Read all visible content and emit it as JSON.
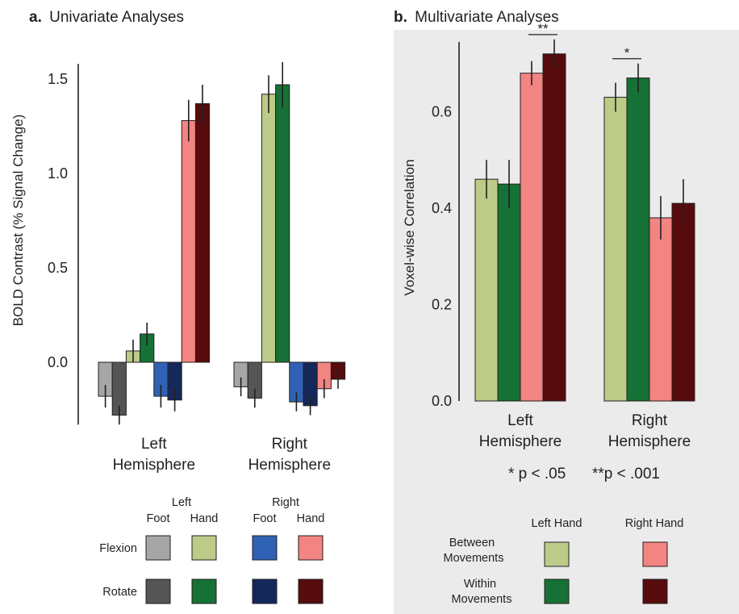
{
  "colors": {
    "left_foot_flexion": "#a6a6a6",
    "left_foot_rotate": "#555555",
    "left_hand_flexion": "#bccb87",
    "left_hand_rotate": "#157135",
    "right_foot_flexion": "#2f62b4",
    "right_foot_rotate": "#15285a",
    "right_hand_flexion": "#f28482",
    "right_hand_rotate": "#570b0d",
    "panel_b_background": "#ebebeb"
  },
  "chart_data": [
    {
      "id": "a",
      "type": "bar",
      "panel_letter": "a.",
      "title": "Univariate Analyses",
      "ylabel": "BOLD Contrast (% Signal Change)",
      "xlabel": "",
      "ylim": [
        -0.33,
        1.58
      ],
      "yticks": [
        {
          "value": 0.0,
          "label": "0.0"
        },
        {
          "value": 0.5,
          "label": "0.5"
        },
        {
          "value": 1.0,
          "label": "1.0"
        },
        {
          "value": 1.5,
          "label": "1.5"
        }
      ],
      "grid": false,
      "categories": [
        "Left\nHemisphere",
        "Right\nHemisphere"
      ],
      "series": [
        {
          "color_key": "left_foot_flexion",
          "values": [
            -0.18,
            -0.13
          ],
          "errors": [
            0.06,
            0.05
          ]
        },
        {
          "color_key": "left_foot_rotate",
          "values": [
            -0.28,
            -0.19
          ],
          "errors": [
            0.05,
            0.05
          ]
        },
        {
          "color_key": "left_hand_flexion",
          "values": [
            0.06,
            1.42
          ],
          "errors": [
            0.06,
            0.1
          ]
        },
        {
          "color_key": "left_hand_rotate",
          "values": [
            0.15,
            1.47
          ],
          "errors": [
            0.06,
            0.12
          ]
        },
        {
          "color_key": "right_foot_flexion",
          "values": [
            -0.18,
            -0.21
          ],
          "errors": [
            0.06,
            0.05
          ]
        },
        {
          "color_key": "right_foot_rotate",
          "values": [
            -0.2,
            -0.23
          ],
          "errors": [
            0.06,
            0.05
          ]
        },
        {
          "color_key": "right_hand_flexion",
          "values": [
            1.28,
            -0.14
          ],
          "errors": [
            0.11,
            0.05
          ]
        },
        {
          "color_key": "right_hand_rotate",
          "values": [
            1.37,
            -0.09
          ],
          "errors": [
            0.1,
            0.05
          ]
        }
      ],
      "legend": {
        "placement": "bottom",
        "left_label": "Left",
        "right_label": "Right",
        "foot_label": "Foot",
        "hand_label": "Hand",
        "rows": [
          {
            "label": "Flexion",
            "swatches": [
              "left_foot_flexion",
              "left_hand_flexion",
              "right_foot_flexion",
              "right_hand_flexion"
            ]
          },
          {
            "label": "Rotate",
            "swatches": [
              "left_foot_rotate",
              "left_hand_rotate",
              "right_foot_rotate",
              "right_hand_rotate"
            ]
          }
        ]
      }
    },
    {
      "id": "b",
      "type": "bar",
      "panel_letter": "b.",
      "title": "Multivariate Analyses",
      "ylabel": "Voxel-wise Correlation",
      "xlabel": "",
      "ylim": [
        0,
        0.745
      ],
      "yticks": [
        {
          "value": 0.0,
          "label": "0.0"
        },
        {
          "value": 0.2,
          "label": "0.2"
        },
        {
          "value": 0.4,
          "label": "0.4"
        },
        {
          "value": 0.6,
          "label": "0.6"
        }
      ],
      "grid": false,
      "categories": [
        "Left\nHemisphere",
        "Right\nHemisphere"
      ],
      "series": [
        {
          "color_key": "left_hand_flexion",
          "values": [
            0.46,
            0.63
          ],
          "errors": [
            0.04,
            0.03
          ]
        },
        {
          "color_key": "left_hand_rotate",
          "values": [
            0.45,
            0.67
          ],
          "errors": [
            0.05,
            0.03
          ]
        },
        {
          "color_key": "right_hand_flexion",
          "values": [
            0.68,
            0.38
          ],
          "errors": [
            0.025,
            0.045
          ]
        },
        {
          "color_key": "right_hand_rotate",
          "values": [
            0.72,
            0.41
          ],
          "errors": [
            0.03,
            0.05
          ]
        }
      ],
      "significance": [
        {
          "group": 0,
          "series": [
            2,
            3
          ],
          "label": "**"
        },
        {
          "group": 1,
          "series": [
            0,
            1
          ],
          "label": "*"
        }
      ],
      "footnote_single": "* p < .05",
      "footnote_double": "**p < .001",
      "legend": {
        "placement": "bottom",
        "left_hand_label": "Left Hand",
        "right_hand_label": "Right Hand",
        "rows": [
          {
            "label": "Between\nMovements",
            "swatches": [
              "left_hand_flexion",
              "right_hand_flexion"
            ]
          },
          {
            "label": "Within\nMovements",
            "swatches": [
              "left_hand_rotate",
              "right_hand_rotate"
            ]
          }
        ]
      }
    }
  ]
}
